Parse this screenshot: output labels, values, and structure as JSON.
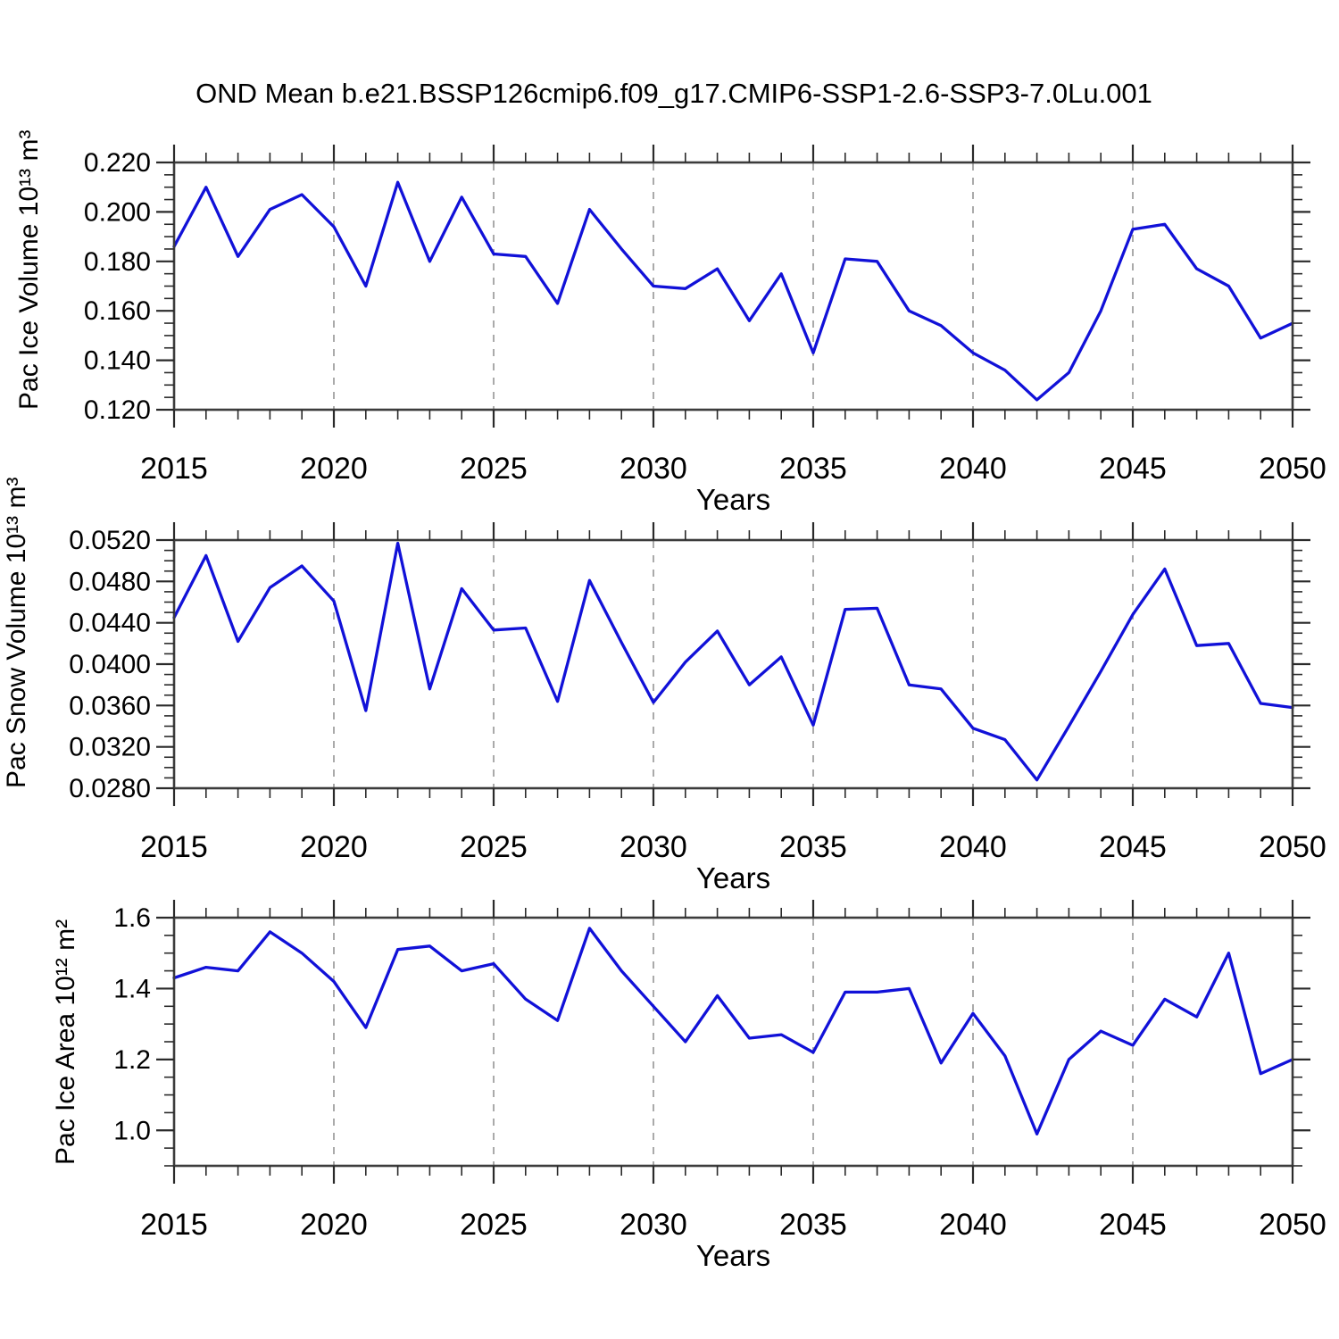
{
  "title": "OND Mean b.e21.BSSP126cmip6.f09_g17.CMIP6-SSP1-2.6-SSP3-7.0Lu.001",
  "style": {
    "line_color": "#1111d8",
    "grid_color": "#aaaaaa",
    "frame_color": "#3c3c3c",
    "tick_color": "#2a2a2a",
    "label_color": "#000000"
  },
  "axis": {
    "xlabel": "Years",
    "xlim": [
      2015,
      2050
    ],
    "x_ticks": [
      2015,
      2020,
      2025,
      2030,
      2035,
      2040,
      2045,
      2050
    ],
    "x_tick_labels": [
      "2015",
      "2020",
      "2025",
      "2030",
      "2035",
      "2040",
      "2045",
      "2050"
    ],
    "x_minor_step": 1,
    "grid_years": [
      2020,
      2025,
      2030,
      2035,
      2040,
      2045
    ],
    "grid_style": "vertical-dashed"
  },
  "chart_data": [
    {
      "type": "line",
      "ylabel": "Pac Ice Volume 10¹³ m³",
      "ylim": [
        0.12,
        0.22
      ],
      "ytick_values": [
        0.12,
        0.14,
        0.16,
        0.18,
        0.2,
        0.22
      ],
      "ytick_labels": [
        "0.120",
        "0.140",
        "0.160",
        "0.180",
        "0.200",
        "0.220"
      ],
      "y_minor_step": 0.005,
      "x": [
        2015,
        2016,
        2017,
        2018,
        2019,
        2020,
        2021,
        2022,
        2023,
        2024,
        2025,
        2026,
        2027,
        2028,
        2029,
        2030,
        2031,
        2032,
        2033,
        2034,
        2035,
        2036,
        2037,
        2038,
        2039,
        2040,
        2041,
        2042,
        2043,
        2044,
        2045,
        2046,
        2047,
        2048,
        2049,
        2050
      ],
      "values": [
        0.186,
        0.21,
        0.182,
        0.201,
        0.207,
        0.194,
        0.17,
        0.212,
        0.18,
        0.206,
        0.183,
        0.182,
        0.163,
        0.201,
        0.185,
        0.17,
        0.169,
        0.177,
        0.156,
        0.175,
        0.143,
        0.181,
        0.18,
        0.16,
        0.154,
        0.143,
        0.136,
        0.124,
        0.135,
        0.16,
        0.193,
        0.195,
        0.177,
        0.17,
        0.149,
        0.155
      ]
    },
    {
      "type": "line",
      "ylabel": "Pac Snow Volume 10¹³ m³",
      "ylim": [
        0.028,
        0.052
      ],
      "ytick_values": [
        0.028,
        0.032,
        0.036,
        0.04,
        0.044,
        0.048,
        0.052
      ],
      "ytick_labels": [
        "0.0280",
        "0.0320",
        "0.0360",
        "0.0400",
        "0.0440",
        "0.0480",
        "0.0520"
      ],
      "y_minor_step": 0.001,
      "x": [
        2015,
        2016,
        2017,
        2018,
        2019,
        2020,
        2021,
        2022,
        2023,
        2024,
        2025,
        2026,
        2027,
        2028,
        2029,
        2030,
        2031,
        2032,
        2033,
        2034,
        2035,
        2036,
        2037,
        2038,
        2039,
        2040,
        2041,
        2042,
        2043,
        2044,
        2045,
        2046,
        2047,
        2048,
        2049,
        2050
      ],
      "values": [
        0.0445,
        0.0505,
        0.0422,
        0.0474,
        0.0495,
        0.0461,
        0.0355,
        0.0517,
        0.0376,
        0.0473,
        0.0433,
        0.0435,
        0.0364,
        0.0481,
        0.0421,
        0.0363,
        0.0402,
        0.0432,
        0.038,
        0.0407,
        0.0341,
        0.0453,
        0.0454,
        0.038,
        0.0376,
        0.0338,
        0.0327,
        0.0288,
        0.034,
        0.0393,
        0.0448,
        0.0492,
        0.0418,
        0.042,
        0.0362,
        0.0358
      ]
    },
    {
      "type": "line",
      "ylabel": "Pac Ice Area 10¹² m²",
      "ylim": [
        0.9,
        1.6
      ],
      "ytick_values": [
        1.0,
        1.2,
        1.4,
        1.6
      ],
      "ytick_labels": [
        "1.0",
        "1.2",
        "1.4",
        "1.6"
      ],
      "y_minor_step": 0.05,
      "x": [
        2015,
        2016,
        2017,
        2018,
        2019,
        2020,
        2021,
        2022,
        2023,
        2024,
        2025,
        2026,
        2027,
        2028,
        2029,
        2030,
        2031,
        2032,
        2033,
        2034,
        2035,
        2036,
        2037,
        2038,
        2039,
        2040,
        2041,
        2042,
        2043,
        2044,
        2045,
        2046,
        2047,
        2048,
        2049,
        2050
      ],
      "values": [
        1.43,
        1.46,
        1.45,
        1.56,
        1.5,
        1.42,
        1.29,
        1.51,
        1.52,
        1.45,
        1.47,
        1.37,
        1.31,
        1.57,
        1.45,
        1.35,
        1.25,
        1.38,
        1.26,
        1.27,
        1.22,
        1.39,
        1.39,
        1.4,
        1.19,
        1.33,
        1.21,
        0.99,
        1.2,
        1.28,
        1.24,
        1.37,
        1.32,
        1.5,
        1.16,
        1.2
      ]
    }
  ]
}
